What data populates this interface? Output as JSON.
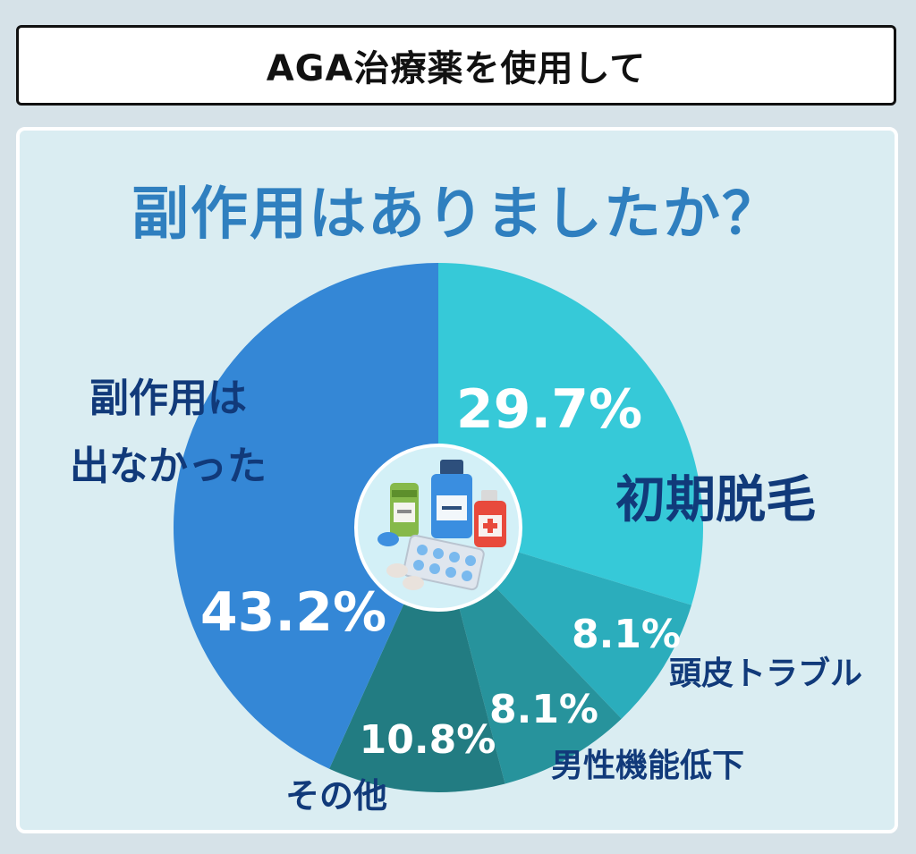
{
  "header": {
    "title": "AGA治療薬を使用して"
  },
  "question": "副作用はありましたか？",
  "colors": {
    "background": "#d6e2e8",
    "panel": "#daedf2",
    "question_text": "#2f7fbf",
    "label_dark": "#113a7a"
  },
  "chart_data": {
    "type": "pie",
    "title": "副作用はありましたか？",
    "start": "top, clockwise",
    "slices": [
      {
        "label": "初期脱毛",
        "value": 29.7,
        "value_label": "29.7%",
        "color": "#36c9d8"
      },
      {
        "label": "頭皮トラブル",
        "value": 8.1,
        "value_label": "8.1%",
        "color": "#2badbc"
      },
      {
        "label": "男性機能低下",
        "value": 8.1,
        "value_label": "8.1%",
        "color": "#27939c"
      },
      {
        "label": "その他",
        "value": 10.8,
        "value_label": "10.8%",
        "color": "#227c82"
      },
      {
        "label": "副作用は出なかった",
        "label_lines": [
          "副作用は",
          "出なかった"
        ],
        "value": 43.2,
        "value_label": "43.2%",
        "color": "#3487d6"
      }
    ]
  },
  "center_image": {
    "icon": "medicine-bottles-and-pills-icon"
  }
}
